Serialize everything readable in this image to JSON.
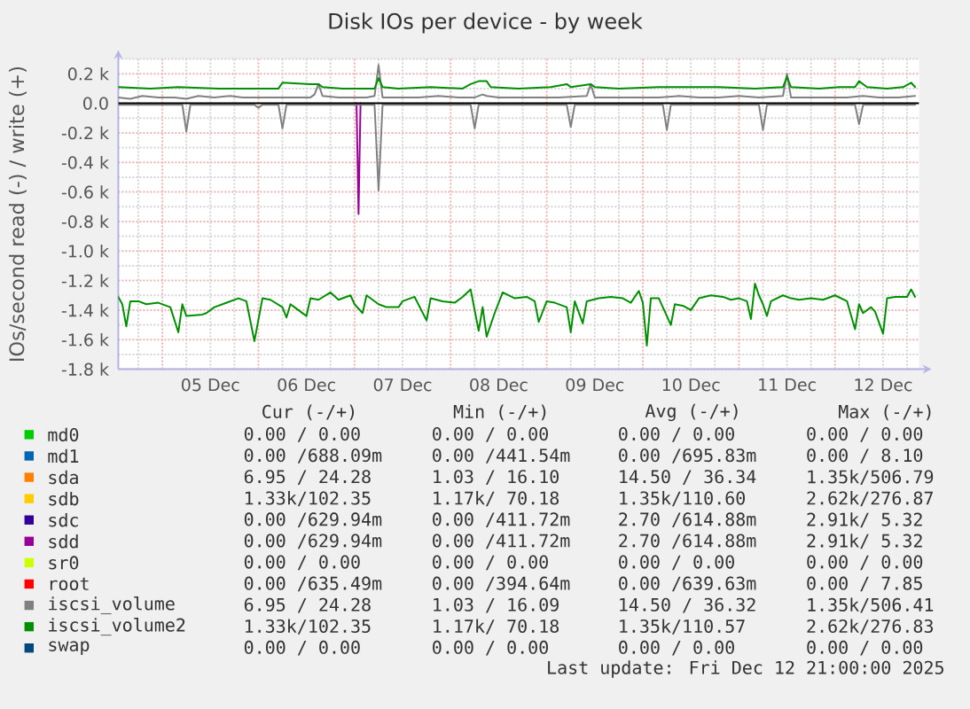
{
  "chart_data": {
    "type": "line",
    "title": "Disk IOs per device - by week",
    "ylabel": "IOs/second read (-) / write (+)",
    "xlim": [
      "2025-12-04T13:00",
      "2025-12-12T21:00"
    ],
    "xticks": [
      {
        "value": "2025-12-05T00:00",
        "label": null
      },
      {
        "value": "2025-12-05T12:00",
        "label": "05 Dec"
      },
      {
        "value": "2025-12-06T00:00",
        "label": null
      },
      {
        "value": "2025-12-06T12:00",
        "label": "06 Dec"
      },
      {
        "value": "2025-12-07T00:00",
        "label": null
      },
      {
        "value": "2025-12-07T12:00",
        "label": "07 Dec"
      },
      {
        "value": "2025-12-08T00:00",
        "label": null
      },
      {
        "value": "2025-12-08T12:00",
        "label": "08 Dec"
      },
      {
        "value": "2025-12-09T00:00",
        "label": null
      },
      {
        "value": "2025-12-09T12:00",
        "label": "09 Dec"
      },
      {
        "value": "2025-12-10T00:00",
        "label": null
      },
      {
        "value": "2025-12-10T12:00",
        "label": "10 Dec"
      },
      {
        "value": "2025-12-11T00:00",
        "label": null
      },
      {
        "value": "2025-12-11T12:00",
        "label": "11 Dec"
      },
      {
        "value": "2025-12-12T00:00",
        "label": null
      },
      {
        "value": "2025-12-12T12:00",
        "label": "12 Dec"
      }
    ],
    "ylim": [
      -1800,
      300
    ],
    "yticks": [
      {
        "value": 200,
        "label": "0.2 k"
      },
      {
        "value": 0,
        "label": "0.0"
      },
      {
        "value": -200,
        "label": "-0.2 k"
      },
      {
        "value": -400,
        "label": "-0.4 k"
      },
      {
        "value": -600,
        "label": "-0.6 k"
      },
      {
        "value": -800,
        "label": "-0.8 k"
      },
      {
        "value": -1000,
        "label": "-1.0 k"
      },
      {
        "value": -1200,
        "label": "-1.2 k"
      },
      {
        "value": -1400,
        "label": "-1.4 k"
      },
      {
        "value": -1600,
        "label": "-1.6 k"
      },
      {
        "value": -1800,
        "label": "-1.8 k"
      }
    ],
    "grid": true,
    "legend": "bottom",
    "ref_lines": [
      {
        "axis": "y",
        "value": 0,
        "color": "#000000"
      }
    ],
    "series": [
      {
        "name": "md0",
        "color": "#00cc00"
      },
      {
        "name": "md1",
        "color": "#0066b3"
      },
      {
        "name": "sda",
        "color": "#ff8000"
      },
      {
        "name": "sdb",
        "color": "#ffcc00"
      },
      {
        "name": "sdc",
        "color": "#330099"
      },
      {
        "name": "sdd",
        "color": "#990099",
        "x": [
          "2025-12-07T00:30",
          "2025-12-07T01:00",
          "2025-12-07T01:30"
        ],
        "values": [
          0,
          -750,
          0
        ]
      },
      {
        "name": "sr0",
        "color": "#ccff00"
      },
      {
        "name": "root",
        "color": "#ff0000"
      },
      {
        "name": "iscsi_volume",
        "color": "#808080",
        "x": [
          "2025-12-04T13:00",
          "2025-12-04T16:00",
          "2025-12-04T19:00",
          "2025-12-04T23:00",
          "2025-12-05T03:00",
          "2025-12-05T06:00",
          "2025-12-05T09:00",
          "2025-12-05T13:00",
          "2025-12-05T17:00",
          "2025-12-05T20:00",
          "2025-12-06T03:00",
          "2025-12-06T07:00",
          "2025-12-06T13:00",
          "2025-12-06T14:00",
          "2025-12-06T15:00",
          "2025-12-06T16:00",
          "2025-12-06T20:00",
          "2025-12-06T23:00",
          "2025-12-07T03:00",
          "2025-12-07T05:00",
          "2025-12-07T06:00",
          "2025-12-07T07:00",
          "2025-12-07T11:00",
          "2025-12-07T16:00",
          "2025-12-07T21:00",
          "2025-12-08T02:00",
          "2025-12-08T06:00",
          "2025-12-08T08:00",
          "2025-12-08T09:00",
          "2025-12-08T12:00",
          "2025-12-08T17:00",
          "2025-12-08T22:00",
          "2025-12-09T03:00",
          "2025-12-09T10:00",
          "2025-12-09T11:00",
          "2025-12-09T12:00",
          "2025-12-09T18:00",
          "2025-12-09T23:00",
          "2025-12-10T04:00",
          "2025-12-10T09:00",
          "2025-12-10T14:00",
          "2025-12-10T19:00",
          "2025-12-11T00:00",
          "2025-12-11T05:00",
          "2025-12-11T11:00",
          "2025-12-11T12:00",
          "2025-12-11T13:00",
          "2025-12-11T17:00",
          "2025-12-11T23:00",
          "2025-12-12T03:00",
          "2025-12-12T07:00",
          "2025-12-12T11:00",
          "2025-12-12T16:00",
          "2025-12-12T20:00"
        ],
        "values": [
          40,
          30,
          50,
          40,
          40,
          30,
          50,
          40,
          50,
          40,
          40,
          40,
          40,
          60,
          130,
          50,
          40,
          40,
          40,
          50,
          260,
          40,
          40,
          40,
          50,
          40,
          40,
          60,
          50,
          40,
          40,
          40,
          40,
          50,
          130,
          40,
          40,
          40,
          40,
          50,
          40,
          40,
          50,
          40,
          50,
          200,
          40,
          40,
          40,
          40,
          50,
          40,
          40,
          50
        ]
      },
      {
        "color": "#808080",
        "x": [
          "2025-12-04T13:00",
          "2025-12-05T05:00",
          "2025-12-05T06:00",
          "2025-12-05T07:00",
          "2025-12-05T23:00",
          "2025-12-06T00:00",
          "2025-12-06T01:00",
          "2025-12-06T05:00",
          "2025-12-06T06:00",
          "2025-12-06T07:00",
          "2025-12-07T05:00",
          "2025-12-07T06:00",
          "2025-12-07T07:00",
          "2025-12-08T05:00",
          "2025-12-08T06:00",
          "2025-12-08T07:00",
          "2025-12-09T05:00",
          "2025-12-09T06:00",
          "2025-12-09T07:00",
          "2025-12-10T05:00",
          "2025-12-10T06:00",
          "2025-12-10T07:00",
          "2025-12-11T05:00",
          "2025-12-11T06:00",
          "2025-12-11T07:00",
          "2025-12-12T05:00",
          "2025-12-12T06:00",
          "2025-12-12T07:00",
          "2025-12-12T20:00"
        ],
        "values": [
          -10,
          -10,
          -190,
          -10,
          -10,
          -30,
          -10,
          -10,
          -170,
          -10,
          -10,
          -590,
          -10,
          -10,
          -170,
          -10,
          -10,
          -160,
          -10,
          -10,
          -180,
          -10,
          -10,
          -180,
          -10,
          -10,
          -140,
          -10,
          -10
        ]
      },
      {
        "name": "iscsi_volume2",
        "color": "#008f00",
        "x": [
          "2025-12-04T13:00",
          "2025-12-04T21:00",
          "2025-12-05T04:00",
          "2025-12-05T14:00",
          "2025-12-05T23:00",
          "2025-12-06T05:00",
          "2025-12-06T06:00",
          "2025-12-06T13:00",
          "2025-12-06T15:00",
          "2025-12-06T16:00",
          "2025-12-06T21:00",
          "2025-12-07T03:00",
          "2025-12-07T05:00",
          "2025-12-07T06:00",
          "2025-12-07T07:00",
          "2025-12-07T11:00",
          "2025-12-07T19:00",
          "2025-12-08T03:00",
          "2025-12-08T05:00",
          "2025-12-08T07:00",
          "2025-12-08T09:00",
          "2025-12-08T10:00",
          "2025-12-08T17:00",
          "2025-12-09T01:00",
          "2025-12-09T05:00",
          "2025-12-09T06:00",
          "2025-12-09T11:00",
          "2025-12-09T12:00",
          "2025-12-09T18:00",
          "2025-12-10T04:00",
          "2025-12-10T14:00",
          "2025-12-10T19:00",
          "2025-12-11T04:00",
          "2025-12-11T11:00",
          "2025-12-11T12:00",
          "2025-12-11T13:00",
          "2025-12-11T20:00",
          "2025-12-12T01:00",
          "2025-12-12T05:00",
          "2025-12-12T06:00",
          "2025-12-12T08:00",
          "2025-12-12T13:00",
          "2025-12-12T17:00",
          "2025-12-12T19:00",
          "2025-12-12T20:00"
        ],
        "values": [
          110,
          100,
          110,
          100,
          100,
          100,
          140,
          130,
          130,
          110,
          100,
          100,
          100,
          170,
          110,
          100,
          110,
          100,
          130,
          150,
          150,
          110,
          100,
          110,
          130,
          110,
          130,
          110,
          100,
          110,
          110,
          110,
          100,
          110,
          180,
          110,
          100,
          110,
          110,
          150,
          110,
          100,
          110,
          140,
          110
        ]
      },
      {
        "color": "#008f00",
        "x": [
          "2025-12-04T13:00",
          "2025-12-04T14:00",
          "2025-12-04T15:00",
          "2025-12-04T16:00",
          "2025-12-04T18:00",
          "2025-12-04T20:00",
          "2025-12-04T23:00",
          "2025-12-05T02:00",
          "2025-12-05T04:00",
          "2025-12-05T05:00",
          "2025-12-05T06:00",
          "2025-12-05T10:00",
          "2025-12-05T11:00",
          "2025-12-05T13:00",
          "2025-12-05T16:00",
          "2025-12-05T19:00",
          "2025-12-05T21:00",
          "2025-12-05T23:00",
          "2025-12-06T01:00",
          "2025-12-06T03:00",
          "2025-12-06T06:00",
          "2025-12-06T07:00",
          "2025-12-06T08:00",
          "2025-12-06T09:00",
          "2025-12-06T12:00",
          "2025-12-06T13:00",
          "2025-12-06T15:00",
          "2025-12-06T18:00",
          "2025-12-06T20:00",
          "2025-12-06T23:00",
          "2025-12-07T00:00",
          "2025-12-07T02:00",
          "2025-12-07T03:00",
          "2025-12-07T06:00",
          "2025-12-07T08:00",
          "2025-12-07T11:00",
          "2025-12-07T12:00",
          "2025-12-07T15:00",
          "2025-12-07T18:00",
          "2025-12-07T19:00",
          "2025-12-07T22:00",
          "2025-12-08T01:00",
          "2025-12-08T03:00",
          "2025-12-08T05:00",
          "2025-12-08T07:00",
          "2025-12-08T08:00",
          "2025-12-08T09:00",
          "2025-12-08T11:00",
          "2025-12-08T13:00",
          "2025-12-08T16:00",
          "2025-12-08T19:00",
          "2025-12-08T21:00",
          "2025-12-08T22:00",
          "2025-12-09T00:00",
          "2025-12-09T02:00",
          "2025-12-09T05:00",
          "2025-12-09T06:00",
          "2025-12-09T07:00",
          "2025-12-09T09:00",
          "2025-12-09T10:00",
          "2025-12-09T13:00",
          "2025-12-09T16:00",
          "2025-12-09T19:00",
          "2025-12-09T21:00",
          "2025-12-09T23:00",
          "2025-12-10T00:00",
          "2025-12-10T01:00",
          "2025-12-10T02:00",
          "2025-12-10T04:00",
          "2025-12-10T07:00",
          "2025-12-10T08:00",
          "2025-12-10T10:00",
          "2025-12-10T12:00",
          "2025-12-10T14:00",
          "2025-12-10T17:00",
          "2025-12-10T20:00",
          "2025-12-10T22:00",
          "2025-12-11T00:00",
          "2025-12-11T02:00",
          "2025-12-11T03:00",
          "2025-12-11T04:00",
          "2025-12-11T05:00",
          "2025-12-11T06:00",
          "2025-12-11T07:00",
          "2025-12-11T08:00",
          "2025-12-11T11:00",
          "2025-12-11T13:00",
          "2025-12-11T15:00",
          "2025-12-11T18:00",
          "2025-12-11T21:00",
          "2025-12-12T00:00",
          "2025-12-12T03:00",
          "2025-12-12T05:00",
          "2025-12-12T06:00",
          "2025-12-12T07:00",
          "2025-12-12T09:00",
          "2025-12-12T10:00",
          "2025-12-12T12:00",
          "2025-12-12T13:00",
          "2025-12-12T15:00",
          "2025-12-12T18:00",
          "2025-12-12T19:00",
          "2025-12-12T20:00"
        ],
        "values": [
          -1310,
          -1360,
          -1510,
          -1340,
          -1340,
          -1360,
          -1350,
          -1380,
          -1550,
          -1360,
          -1440,
          -1430,
          -1420,
          -1380,
          -1350,
          -1320,
          -1340,
          -1610,
          -1320,
          -1330,
          -1380,
          -1450,
          -1360,
          -1380,
          -1440,
          -1320,
          -1330,
          -1280,
          -1330,
          -1300,
          -1360,
          -1420,
          -1300,
          -1360,
          -1380,
          -1380,
          -1340,
          -1310,
          -1470,
          -1320,
          -1340,
          -1350,
          -1310,
          -1260,
          -1540,
          -1380,
          -1580,
          -1420,
          -1280,
          -1320,
          -1310,
          -1340,
          -1480,
          -1340,
          -1350,
          -1380,
          -1550,
          -1340,
          -1490,
          -1340,
          -1320,
          -1310,
          -1320,
          -1350,
          -1270,
          -1350,
          -1640,
          -1320,
          -1320,
          -1500,
          -1360,
          -1370,
          -1400,
          -1320,
          -1300,
          -1310,
          -1330,
          -1320,
          -1340,
          -1460,
          -1220,
          -1300,
          -1360,
          -1440,
          -1340,
          -1300,
          -1320,
          -1330,
          -1320,
          -1330,
          -1300,
          -1340,
          -1530,
          -1360,
          -1420,
          -1380,
          -1410,
          -1560,
          -1320,
          -1310,
          -1310,
          -1260,
          -1310
        ]
      },
      {
        "name": "swap",
        "color": "#00487d"
      }
    ],
    "annotations": [
      "Cur (-/+)",
      "Min (-/+)",
      "Avg (-/+)",
      "Max (-/+)",
      "0.00 / 0.00",
      "0.00 / 0.00",
      "0.00 / 0.00",
      "0.00 / 0.00",
      "0.00 /688.09m",
      "0.00 /441.54m",
      "0.00 /695.83m",
      "0.00 / 8.10",
      "6.95 / 24.28",
      "1.03 / 16.10",
      "14.50 / 36.34",
      "1.35k/506.79",
      "1.33k/102.35",
      "1.17k/ 70.18",
      "1.35k/110.60",
      "2.62k/276.87",
      "0.00 /629.94m",
      "0.00 /411.72m",
      "2.70 /614.88m",
      "2.91k/ 5.32",
      "0.00 /629.94m",
      "0.00 /411.72m",
      "2.70 /614.88m",
      "2.91k/ 5.32",
      "0.00 / 0.00",
      "0.00 / 0.00",
      "0.00 / 0.00",
      "0.00 / 0.00",
      "0.00 /635.49m",
      "0.00 /394.64m",
      "0.00 /639.63m",
      "0.00 / 7.85",
      "6.95 / 24.28",
      "1.03 / 16.09",
      "14.50 / 36.32",
      "1.35k/506.41",
      "1.33k/102.35",
      "1.17k/ 70.18",
      "1.35k/110.57",
      "2.62k/276.83",
      "0.00 / 0.00",
      "0.00 / 0.00",
      "0.00 / 0.00",
      "0.00 / 0.00",
      "Last update: Fri Dec 12 21:00:00 2025"
    ]
  }
}
